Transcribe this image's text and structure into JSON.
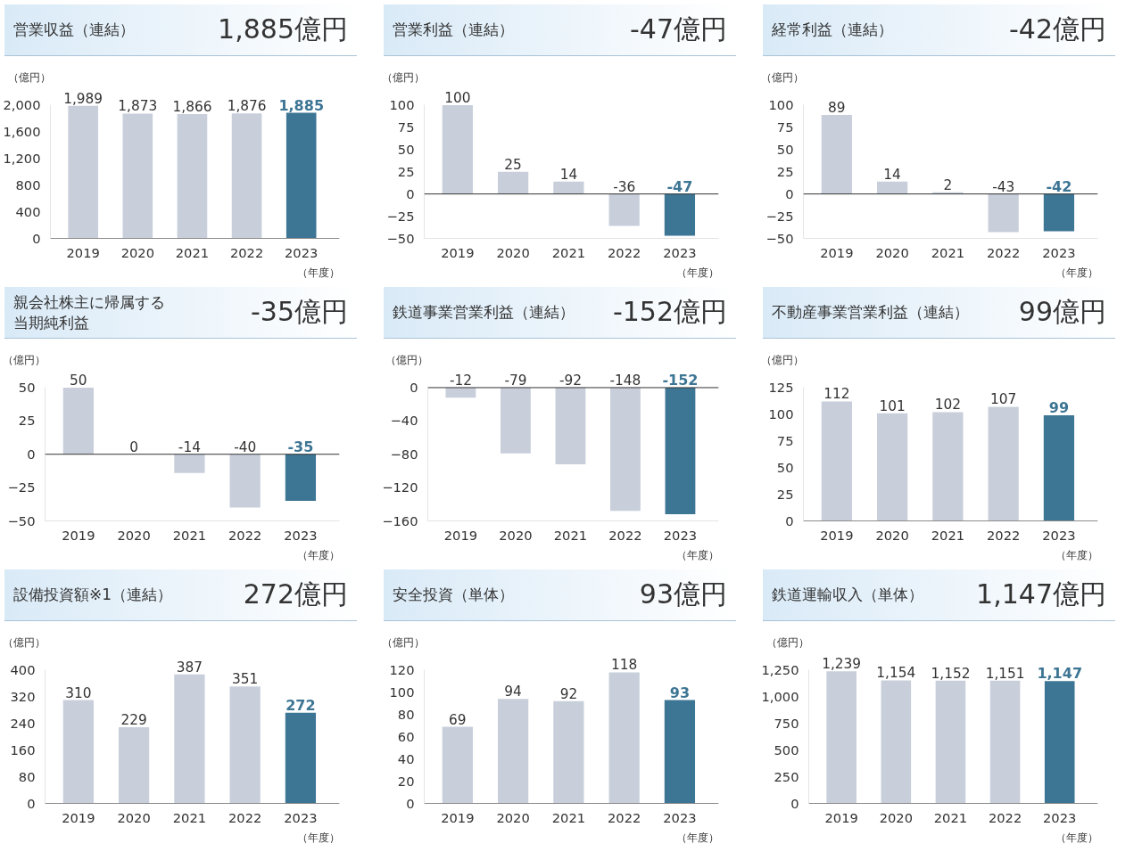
{
  "chart_data": [
    {
      "type": "bar",
      "title": "営業収益（連結）",
      "subtitle": "1,885億円",
      "ylabel": "（億円）",
      "xlabel": "（年度）",
      "categories": [
        "2019",
        "2020",
        "2021",
        "2022",
        "2023"
      ],
      "values": [
        1989,
        1873,
        1866,
        1876,
        1885
      ],
      "value_labels": [
        "1,989",
        "1,873",
        "1,866",
        "1,876",
        "1,885"
      ],
      "colors": [
        "#c8cfdb",
        "#c8cfdb",
        "#c8cfdb",
        "#c8cfdb",
        "#3d7594"
      ],
      "ylim": [
        0,
        2000
      ],
      "yticks": [
        0,
        400,
        800,
        {
          "value": 1200,
          "label": "1,200"
        },
        {
          "value": 1600,
          "label": "1,600"
        },
        {
          "value": 2000,
          "label": "2,000"
        }
      ]
    },
    {
      "type": "bar",
      "title": "営業利益（連結）",
      "subtitle": "-47億円",
      "ylabel": "（億円）",
      "xlabel": "（年度）",
      "categories": [
        "2019",
        "2020",
        "2021",
        "2022",
        "2023"
      ],
      "values": [
        100,
        25,
        14,
        -36,
        -47
      ],
      "value_labels": [
        "100",
        "25",
        "14",
        "-36",
        "-47"
      ],
      "colors": [
        "#c8cfdb",
        "#c8cfdb",
        "#c8cfdb",
        "#c8cfdb",
        "#3d7594"
      ],
      "ylim": [
        -50,
        100
      ],
      "yticks": [
        -50,
        -25,
        0,
        25,
        50,
        75,
        100
      ]
    },
    {
      "type": "bar",
      "title": "経常利益（連結）",
      "subtitle": "-42億円",
      "ylabel": "（億円）",
      "xlabel": "（年度）",
      "categories": [
        "2019",
        "2020",
        "2021",
        "2022",
        "2023"
      ],
      "values": [
        89,
        14,
        2,
        -43,
        -42
      ],
      "value_labels": [
        "89",
        "14",
        "2",
        "-43",
        "-42"
      ],
      "colors": [
        "#c8cfdb",
        "#c8cfdb",
        "#c8cfdb",
        "#c8cfdb",
        "#3d7594"
      ],
      "ylim": [
        -50,
        100
      ],
      "yticks": [
        -50,
        -25,
        0,
        25,
        50,
        75,
        100
      ]
    },
    {
      "type": "bar",
      "title": "親会社株主に帰属する当期純利益",
      "subtitle": "-35億円",
      "ylabel": "（億円）",
      "xlabel": "（年度）",
      "categories": [
        "2019",
        "2020",
        "2021",
        "2022",
        "2023"
      ],
      "values": [
        50,
        0,
        -14,
        -40,
        -35
      ],
      "value_labels": [
        "50",
        "0",
        "-14",
        "-40",
        "-35"
      ],
      "colors": [
        "#c8cfdb",
        "#c8cfdb",
        "#c8cfdb",
        "#c8cfdb",
        "#3d7594"
      ],
      "ylim": [
        -50,
        50
      ],
      "yticks": [
        -50,
        -25,
        0,
        25,
        50
      ]
    },
    {
      "type": "bar",
      "title": "鉄道事業営業利益（連結）",
      "subtitle": "-152億円",
      "ylabel": "（億円）",
      "xlabel": "（年度）",
      "categories": [
        "2019",
        "2020",
        "2021",
        "2022",
        "2023"
      ],
      "values": [
        -12,
        -79,
        -92,
        -148,
        -152
      ],
      "value_labels": [
        "-12",
        "-79",
        "-92",
        "-148",
        "-152"
      ],
      "colors": [
        "#c8cfdb",
        "#c8cfdb",
        "#c8cfdb",
        "#c8cfdb",
        "#3d7594"
      ],
      "ylim": [
        -160,
        0
      ],
      "yticks": [
        -160,
        -120,
        -80,
        -40,
        0
      ]
    },
    {
      "type": "bar",
      "title": "不動産事業営業利益（連結）",
      "subtitle": "99億円",
      "ylabel": "（億円）",
      "xlabel": "（年度）",
      "categories": [
        "2019",
        "2020",
        "2021",
        "2022",
        "2023"
      ],
      "values": [
        112,
        101,
        102,
        107,
        99
      ],
      "value_labels": [
        "112",
        "101",
        "102",
        "107",
        "99"
      ],
      "colors": [
        "#c8cfdb",
        "#c8cfdb",
        "#c8cfdb",
        "#c8cfdb",
        "#3d7594"
      ],
      "ylim": [
        0,
        125
      ],
      "yticks": [
        0,
        25,
        50,
        75,
        100,
        125
      ]
    },
    {
      "type": "bar",
      "title": "設備投資額※1（連結）",
      "subtitle": "272億円",
      "ylabel": "（億円）",
      "xlabel": "（年度）",
      "categories": [
        "2019",
        "2020",
        "2021",
        "2022",
        "2023"
      ],
      "values": [
        310,
        229,
        387,
        351,
        272
      ],
      "value_labels": [
        "310",
        "229",
        "387",
        "351",
        "272"
      ],
      "colors": [
        "#c8cfdb",
        "#c8cfdb",
        "#c8cfdb",
        "#c8cfdb",
        "#3d7594"
      ],
      "ylim": [
        0,
        400
      ],
      "yticks": [
        0,
        80,
        160,
        240,
        320,
        400
      ]
    },
    {
      "type": "bar",
      "title": "安全投資（単体）",
      "subtitle": "93億円",
      "ylabel": "（億円）",
      "xlabel": "（年度）",
      "categories": [
        "2019",
        "2020",
        "2021",
        "2022",
        "2023"
      ],
      "values": [
        69,
        94,
        92,
        118,
        93
      ],
      "value_labels": [
        "69",
        "94",
        "92",
        "118",
        "93"
      ],
      "colors": [
        "#c8cfdb",
        "#c8cfdb",
        "#c8cfdb",
        "#c8cfdb",
        "#3d7594"
      ],
      "ylim": [
        0,
        120
      ],
      "yticks": [
        0,
        20,
        40,
        60,
        80,
        100,
        120
      ]
    },
    {
      "type": "bar",
      "title": "鉄道運輸収入（単体）",
      "subtitle": "1,147億円",
      "ylabel": "（億円）",
      "xlabel": "（年度）",
      "categories": [
        "2019",
        "2020",
        "2021",
        "2022",
        "2023"
      ],
      "values": [
        1239,
        1154,
        1152,
        1151,
        1147
      ],
      "value_labels": [
        "1,239",
        "1,154",
        "1,152",
        "1,151",
        "1,147"
      ],
      "colors": [
        "#c8cfdb",
        "#c8cfdb",
        "#c8cfdb",
        "#c8cfdb",
        "#3d7594"
      ],
      "ylim": [
        0,
        1250
      ],
      "yticks": [
        0,
        250,
        500,
        750,
        {
          "value": 1000,
          "label": "1,000"
        },
        {
          "value": 1250,
          "label": "1,250"
        }
      ]
    }
  ]
}
